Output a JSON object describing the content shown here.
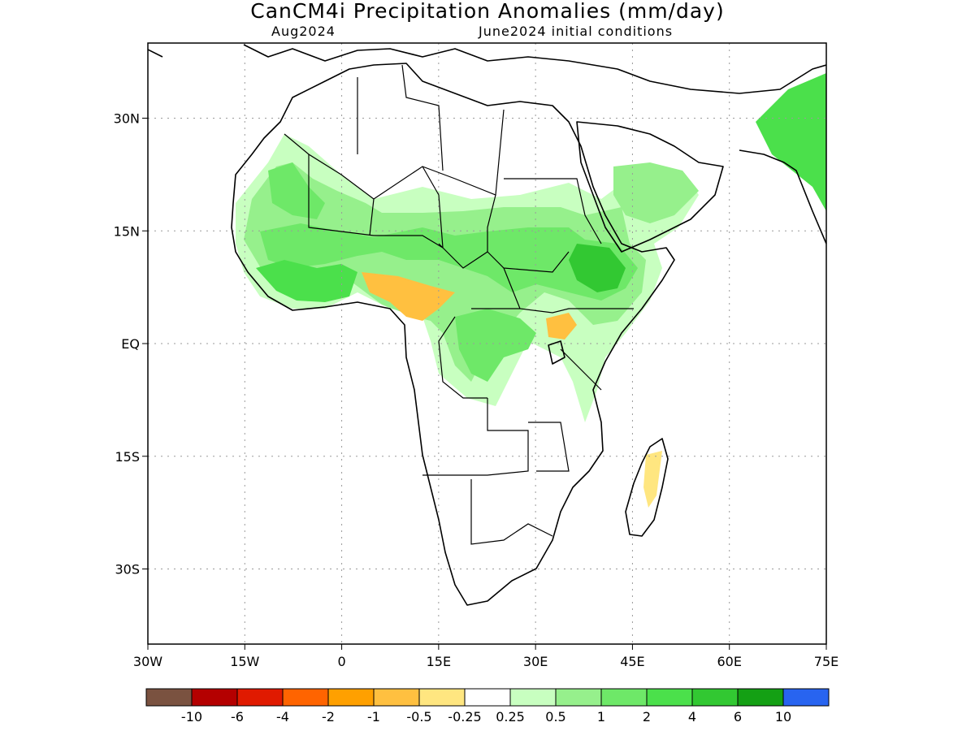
{
  "header": {
    "title": "CanCM4i Precipitation Anomalies (mm/day)",
    "target_month": "Aug2024",
    "initial_conditions": "June2024 initial conditions"
  },
  "map": {
    "region": "Africa",
    "lon_range": [
      -30,
      75
    ],
    "lat_range": [
      -40,
      40
    ],
    "lat_ticks": [
      {
        "value": 30,
        "label": "30N"
      },
      {
        "value": 15,
        "label": "15N"
      },
      {
        "value": 0,
        "label": "EQ"
      },
      {
        "value": -15,
        "label": "15S"
      },
      {
        "value": -30,
        "label": "30S"
      }
    ],
    "lon_ticks": [
      {
        "value": -30,
        "label": "30W"
      },
      {
        "value": -15,
        "label": "15W"
      },
      {
        "value": 0,
        "label": "0"
      },
      {
        "value": 15,
        "label": "15E"
      },
      {
        "value": 30,
        "label": "30E"
      },
      {
        "value": 45,
        "label": "45E"
      },
      {
        "value": 60,
        "label": "60E"
      },
      {
        "value": 75,
        "label": "75E"
      }
    ],
    "grid": "dotted"
  },
  "colorbar": {
    "colors": [
      "#7a5240",
      "#b40000",
      "#e01a00",
      "#ff6400",
      "#ffa000",
      "#ffc040",
      "#ffe680",
      "#ffffff",
      "#c8ffc0",
      "#96f08c",
      "#6ee868",
      "#4be04b",
      "#32c832",
      "#14a014",
      "#2864f0"
    ],
    "labels": [
      "-10",
      "-6",
      "-4",
      "-2",
      "-1",
      "-0.5",
      "-0.25",
      "0.25",
      "0.5",
      "1",
      "2",
      "4",
      "6",
      "10"
    ]
  },
  "anomaly_regions": [
    {
      "name": "Sahel belt",
      "level": 1,
      "color": "#96f08c"
    },
    {
      "name": "West Africa coast",
      "level": 2,
      "color": "#4be04b"
    },
    {
      "name": "Ethiopian highlands",
      "level": 4,
      "color": "#32c832"
    },
    {
      "name": "Nigeria/Cameroon",
      "level": -1,
      "color": "#ffc040"
    },
    {
      "name": "Lake Victoria",
      "level": -1,
      "color": "#ffc040"
    },
    {
      "name": "Madagascar east",
      "level": -0.5,
      "color": "#ffe680"
    },
    {
      "name": "Arabian Peninsula",
      "level": 1,
      "color": "#96f08c"
    },
    {
      "name": "Western India",
      "level": 2,
      "color": "#4be04b"
    }
  ]
}
